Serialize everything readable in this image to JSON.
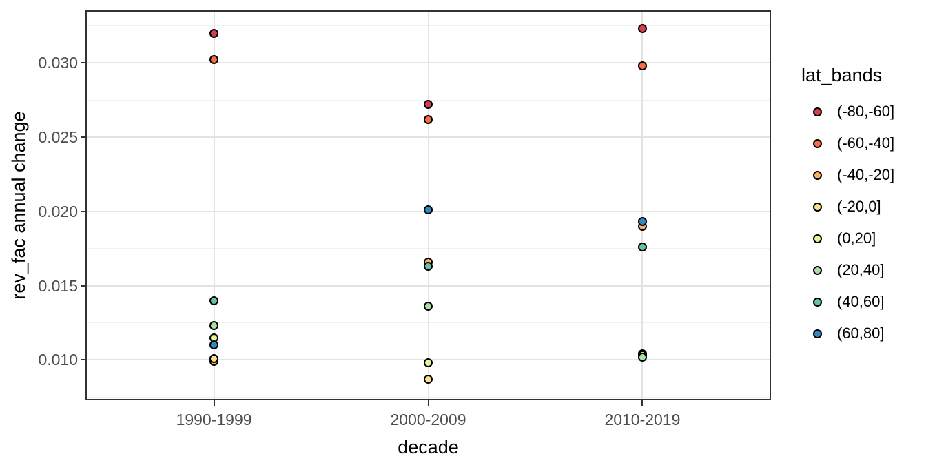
{
  "chart_data": {
    "type": "scatter",
    "title": "",
    "xlabel": "decade",
    "ylabel": "rev_fac annual change",
    "categories": [
      "1990-1999",
      "2000-2009",
      "2010-2019"
    ],
    "legend": {
      "title": "lat_bands",
      "position": "right"
    },
    "series": [
      {
        "name": "(-80,-60]",
        "color": "#D53E4F",
        "values": [
          0.032,
          0.0272,
          0.0323
        ]
      },
      {
        "name": "(-60,-40]",
        "color": "#F46D43",
        "values": [
          0.0302,
          0.0262,
          0.0298
        ]
      },
      {
        "name": "(-40,-20]",
        "color": "#FDAE61",
        "values": [
          0.0099,
          0.0166,
          0.019
        ]
      },
      {
        "name": "(-20,0]",
        "color": "#FEE08B",
        "values": [
          0.0101,
          0.0087,
          0.0104
        ]
      },
      {
        "name": "(0,20]",
        "color": "#E6F598",
        "values": [
          0.0115,
          0.0098,
          0.0103
        ]
      },
      {
        "name": "(20,40]",
        "color": "#ABDDA4",
        "values": [
          0.0123,
          0.0136,
          0.0102
        ]
      },
      {
        "name": "(40,60]",
        "color": "#66C2A5",
        "values": [
          0.014,
          0.0163,
          0.0176
        ]
      },
      {
        "name": "(60,80]",
        "color": "#3288BD",
        "values": [
          0.011,
          0.0201,
          0.0193
        ]
      }
    ],
    "y_ticks": [
      0.01,
      0.015,
      0.02,
      0.025,
      0.03
    ],
    "y_minor_ticks": [
      0.0075,
      0.0125,
      0.0175,
      0.0225,
      0.0275,
      0.0325
    ],
    "y_tick_decimals": 3,
    "ylim": [
      0.00728,
      0.03354
    ],
    "grid": true,
    "point_style": "filled-circle-black-outline"
  },
  "colors": {
    "background": "#FFFFFF",
    "panel_background": "#FFFFFF",
    "panel_border": "#333333",
    "grid_major": "#E3E3E3",
    "grid_minor": "#F1F1F1",
    "tick_mark": "#333333",
    "axis_text": "#4D4D4D",
    "axis_title": "#000000",
    "legend_text": "#000000",
    "point_outline": "#000000"
  }
}
